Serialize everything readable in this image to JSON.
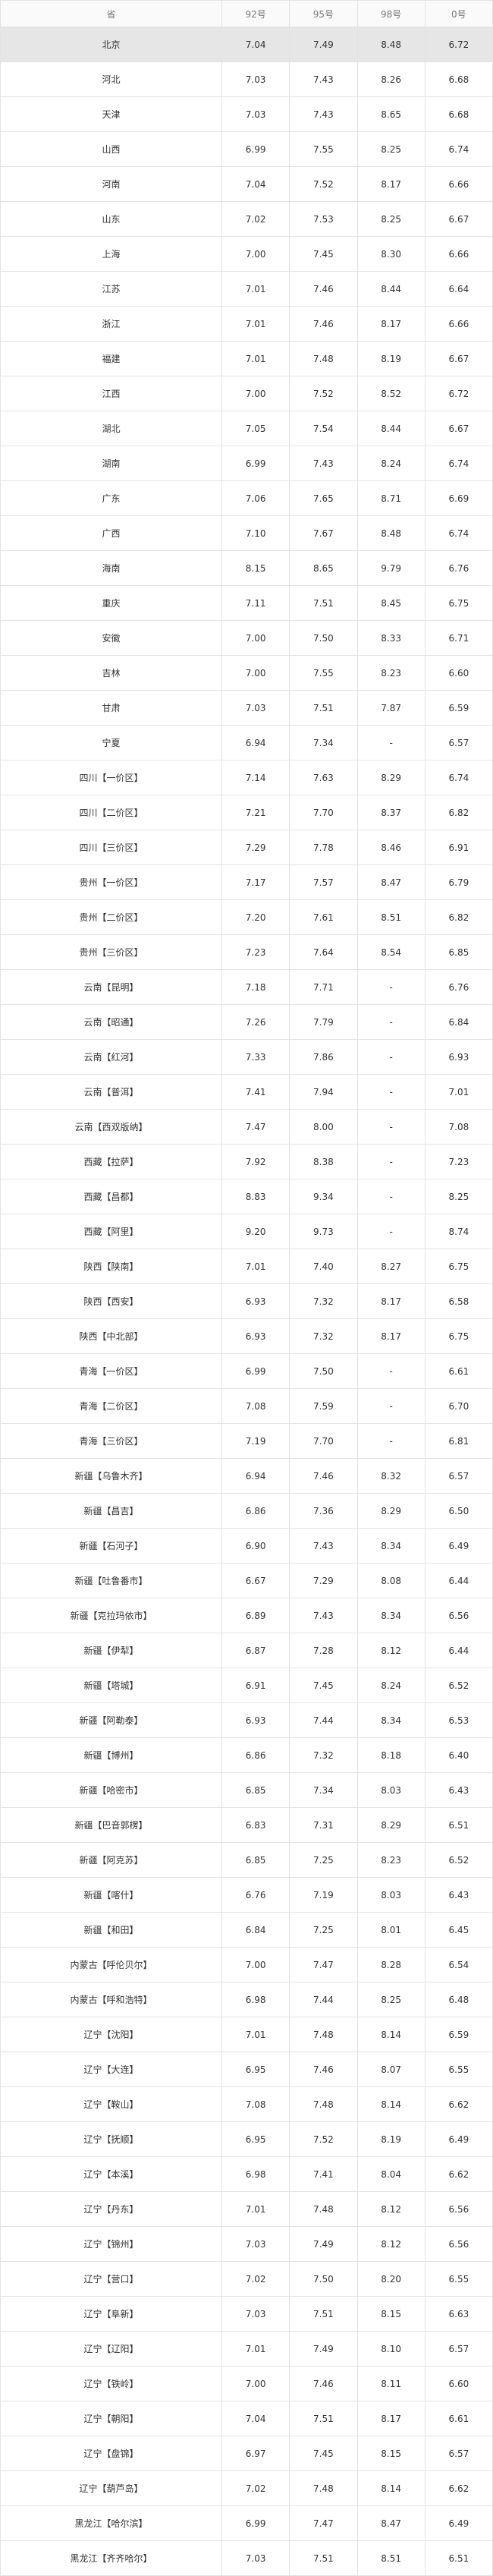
{
  "table": {
    "header": [
      "省",
      "92号",
      "95号",
      "98号",
      "0号"
    ],
    "rows": [
      [
        "北京",
        "7.04",
        "7.49",
        "8.48",
        "6.72"
      ],
      [
        "河北",
        "7.03",
        "7.43",
        "8.26",
        "6.68"
      ],
      [
        "天津",
        "7.03",
        "7.43",
        "8.65",
        "6.68"
      ],
      [
        "山西",
        "6.99",
        "7.55",
        "8.25",
        "6.74"
      ],
      [
        "河南",
        "7.04",
        "7.52",
        "8.17",
        "6.66"
      ],
      [
        "山东",
        "7.02",
        "7.53",
        "8.25",
        "6.67"
      ],
      [
        "上海",
        "7.00",
        "7.45",
        "8.30",
        "6.66"
      ],
      [
        "江苏",
        "7.01",
        "7.46",
        "8.44",
        "6.64"
      ],
      [
        "浙江",
        "7.01",
        "7.46",
        "8.17",
        "6.66"
      ],
      [
        "福建",
        "7.01",
        "7.48",
        "8.19",
        "6.67"
      ],
      [
        "江西",
        "7.00",
        "7.52",
        "8.52",
        "6.72"
      ],
      [
        "湖北",
        "7.05",
        "7.54",
        "8.44",
        "6.67"
      ],
      [
        "湖南",
        "6.99",
        "7.43",
        "8.24",
        "6.74"
      ],
      [
        "广东",
        "7.06",
        "7.65",
        "8.71",
        "6.69"
      ],
      [
        "广西",
        "7.10",
        "7.67",
        "8.48",
        "6.74"
      ],
      [
        "海南",
        "8.15",
        "8.65",
        "9.79",
        "6.76"
      ],
      [
        "重庆",
        "7.11",
        "7.51",
        "8.45",
        "6.75"
      ],
      [
        "安徽",
        "7.00",
        "7.50",
        "8.33",
        "6.71"
      ],
      [
        "吉林",
        "7.00",
        "7.55",
        "8.23",
        "6.60"
      ],
      [
        "甘肃",
        "7.03",
        "7.51",
        "7.87",
        "6.59"
      ],
      [
        "宁夏",
        "6.94",
        "7.34",
        "-",
        "6.57"
      ],
      [
        "四川【一价区】",
        "7.14",
        "7.63",
        "8.29",
        "6.74"
      ],
      [
        "四川【二价区】",
        "7.21",
        "7.70",
        "8.37",
        "6.82"
      ],
      [
        "四川【三价区】",
        "7.29",
        "7.78",
        "8.46",
        "6.91"
      ],
      [
        "贵州【一价区】",
        "7.17",
        "7.57",
        "8.47",
        "6.79"
      ],
      [
        "贵州【二价区】",
        "7.20",
        "7.61",
        "8.51",
        "6.82"
      ],
      [
        "贵州【三价区】",
        "7.23",
        "7.64",
        "8.54",
        "6.85"
      ],
      [
        "云南【昆明】",
        "7.18",
        "7.71",
        "-",
        "6.76"
      ],
      [
        "云南【昭通】",
        "7.26",
        "7.79",
        "-",
        "6.84"
      ],
      [
        "云南【红河】",
        "7.33",
        "7.86",
        "-",
        "6.93"
      ],
      [
        "云南【普洱】",
        "7.41",
        "7.94",
        "-",
        "7.01"
      ],
      [
        "云南【西双版纳】",
        "7.47",
        "8.00",
        "-",
        "7.08"
      ],
      [
        "西藏【拉萨】",
        "7.92",
        "8.38",
        "-",
        "7.23"
      ],
      [
        "西藏【昌都】",
        "8.83",
        "9.34",
        "-",
        "8.25"
      ],
      [
        "西藏【阿里】",
        "9.20",
        "9.73",
        "-",
        "8.74"
      ],
      [
        "陕西【陕南】",
        "7.01",
        "7.40",
        "8.27",
        "6.75"
      ],
      [
        "陕西【西安】",
        "6.93",
        "7.32",
        "8.17",
        "6.58"
      ],
      [
        "陕西【中北部】",
        "6.93",
        "7.32",
        "8.17",
        "6.75"
      ],
      [
        "青海【一价区】",
        "6.99",
        "7.50",
        "-",
        "6.61"
      ],
      [
        "青海【二价区】",
        "7.08",
        "7.59",
        "-",
        "6.70"
      ],
      [
        "青海【三价区】",
        "7.19",
        "7.70",
        "-",
        "6.81"
      ],
      [
        "新疆【乌鲁木齐】",
        "6.94",
        "7.46",
        "8.32",
        "6.57"
      ],
      [
        "新疆【昌吉】",
        "6.86",
        "7.36",
        "8.29",
        "6.50"
      ],
      [
        "新疆【石河子】",
        "6.90",
        "7.43",
        "8.34",
        "6.49"
      ],
      [
        "新疆【吐鲁番市】",
        "6.67",
        "7.29",
        "8.08",
        "6.44"
      ],
      [
        "新疆【克拉玛依市】",
        "6.89",
        "7.43",
        "8.34",
        "6.56"
      ],
      [
        "新疆【伊犁】",
        "6.87",
        "7.28",
        "8.12",
        "6.44"
      ],
      [
        "新疆【塔城】",
        "6.91",
        "7.45",
        "8.24",
        "6.52"
      ],
      [
        "新疆【阿勒泰】",
        "6.93",
        "7.44",
        "8.34",
        "6.53"
      ],
      [
        "新疆【博州】",
        "6.86",
        "7.32",
        "8.18",
        "6.40"
      ],
      [
        "新疆【哈密市】",
        "6.85",
        "7.34",
        "8.03",
        "6.43"
      ],
      [
        "新疆【巴音郭楞】",
        "6.83",
        "7.31",
        "8.29",
        "6.51"
      ],
      [
        "新疆【阿克苏】",
        "6.85",
        "7.25",
        "8.23",
        "6.52"
      ],
      [
        "新疆【喀什】",
        "6.76",
        "7.19",
        "8.03",
        "6.43"
      ],
      [
        "新疆【和田】",
        "6.84",
        "7.25",
        "8.01",
        "6.45"
      ],
      [
        "内蒙古【呼伦贝尔】",
        "7.00",
        "7.47",
        "8.28",
        "6.54"
      ],
      [
        "内蒙古【呼和浩特】",
        "6.98",
        "7.44",
        "8.25",
        "6.48"
      ],
      [
        "辽宁【沈阳】",
        "7.01",
        "7.48",
        "8.14",
        "6.59"
      ],
      [
        "辽宁【大连】",
        "6.95",
        "7.46",
        "8.07",
        "6.55"
      ],
      [
        "辽宁【鞍山】",
        "7.08",
        "7.48",
        "8.14",
        "6.62"
      ],
      [
        "辽宁【抚顺】",
        "6.95",
        "7.52",
        "8.19",
        "6.49"
      ],
      [
        "辽宁【本溪】",
        "6.98",
        "7.41",
        "8.04",
        "6.62"
      ],
      [
        "辽宁【丹东】",
        "7.01",
        "7.48",
        "8.12",
        "6.56"
      ],
      [
        "辽宁【锦州】",
        "7.03",
        "7.49",
        "8.12",
        "6.56"
      ],
      [
        "辽宁【营口】",
        "7.02",
        "7.50",
        "8.20",
        "6.55"
      ],
      [
        "辽宁【阜新】",
        "7.03",
        "7.51",
        "8.15",
        "6.63"
      ],
      [
        "辽宁【辽阳】",
        "7.01",
        "7.49",
        "8.10",
        "6.57"
      ],
      [
        "辽宁【铁岭】",
        "7.00",
        "7.46",
        "8.11",
        "6.60"
      ],
      [
        "辽宁【朝阳】",
        "7.04",
        "7.51",
        "8.17",
        "6.61"
      ],
      [
        "辽宁【盘锦】",
        "6.97",
        "7.45",
        "8.15",
        "6.57"
      ],
      [
        "辽宁【葫芦岛】",
        "7.02",
        "7.48",
        "8.14",
        "6.62"
      ],
      [
        "黑龙江【哈尔滨】",
        "6.99",
        "7.47",
        "8.47",
        "6.49"
      ],
      [
        "黑龙江【齐齐哈尔】",
        "7.03",
        "7.51",
        "8.51",
        "6.51"
      ]
    ]
  }
}
